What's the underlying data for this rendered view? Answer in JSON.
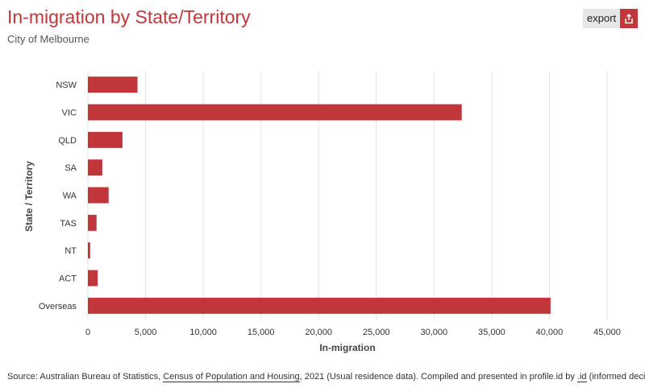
{
  "header": {
    "title": "In-migration by State/Territory",
    "subtitle": "City of Melbourne"
  },
  "toolbar": {
    "export_label": "export",
    "export_icon": "share-export-icon"
  },
  "chart_data": {
    "type": "bar",
    "orientation": "horizontal",
    "categories": [
      "NSW",
      "VIC",
      "QLD",
      "SA",
      "WA",
      "TAS",
      "NT",
      "ACT",
      "Overseas"
    ],
    "values": [
      4300,
      32400,
      3000,
      1250,
      1800,
      750,
      200,
      850,
      40100
    ],
    "xlabel": "In-migration",
    "ylabel": "State / Territory",
    "xlim": [
      0,
      45000
    ],
    "x_ticks": [
      "0",
      "5,000",
      "10,000",
      "15,000",
      "20,000",
      "25,000",
      "30,000",
      "35,000",
      "40,000",
      "45,000"
    ],
    "bar_color": "#c0363a",
    "grid": true
  },
  "footer": {
    "source_prefix": "Source: Australian Bureau of Statistics, ",
    "source_link": "Census of Population and Housing",
    "source_mid": ", 2021 (Usual residence data). Compiled and presented in profile.id by ",
    "source_id_link": ".id",
    "source_suffix": " (informed decisions)."
  }
}
